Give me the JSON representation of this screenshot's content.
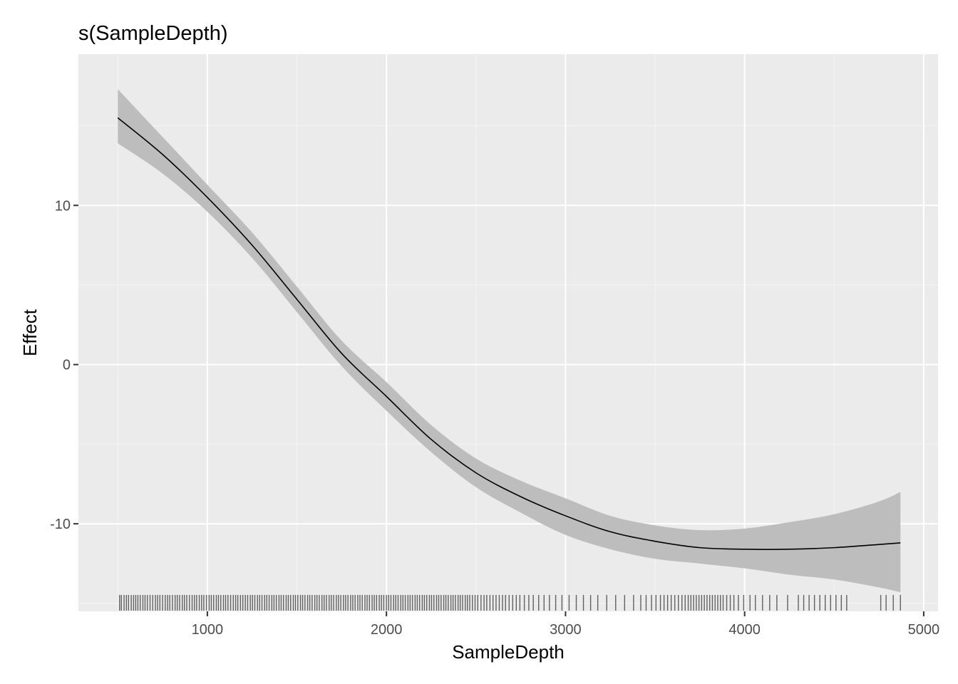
{
  "chart_data": {
    "type": "line",
    "title": "s(SampleDepth)",
    "xlabel": "SampleDepth",
    "ylabel": "Effect",
    "xlim": [
      280,
      5080
    ],
    "ylim": [
      -15.5,
      19.5
    ],
    "x_ticks": [
      1000,
      2000,
      3000,
      4000,
      5000
    ],
    "x_tick_labels": [
      "1000",
      "2000",
      "3000",
      "4000",
      "5000"
    ],
    "y_ticks": [
      -10,
      0,
      10
    ],
    "y_tick_labels": [
      "-10",
      "0",
      "10"
    ],
    "grid": true,
    "legend": "none",
    "colors": {
      "panel_background": "#ebebeb",
      "grid_major": "#ffffff",
      "grid_minor": "#f5f5f5",
      "line": "#000000",
      "ribbon": "#bdbdbd",
      "rug": "#333333"
    },
    "series": [
      {
        "x": [
          500,
          750,
          1000,
          1250,
          1500,
          1750,
          2000,
          2250,
          2500,
          2750,
          3000,
          3250,
          3500,
          3750,
          4000,
          4250,
          4500,
          4750,
          4870
        ],
        "y": [
          15.5,
          13.2,
          10.5,
          7.5,
          4.1,
          0.7,
          -2.0,
          -4.7,
          -6.8,
          -8.3,
          -9.5,
          -10.5,
          -11.1,
          -11.5,
          -11.6,
          -11.6,
          -11.5,
          -11.3,
          -11.2
        ],
        "lower": [
          13.9,
          12.0,
          9.6,
          6.7,
          3.3,
          -0.1,
          -2.9,
          -5.5,
          -7.7,
          -9.3,
          -10.7,
          -11.6,
          -12.2,
          -12.5,
          -12.8,
          -13.2,
          -13.5,
          -14.0,
          -14.3
        ],
        "upper": [
          17.3,
          14.3,
          11.3,
          8.3,
          4.9,
          1.5,
          -1.1,
          -3.8,
          -5.9,
          -7.3,
          -8.4,
          -9.5,
          -10.1,
          -10.4,
          -10.3,
          -9.9,
          -9.4,
          -8.6,
          -8.0
        ]
      }
    ],
    "rug": [
      510,
      520,
      535,
      548,
      560,
      575,
      588,
      600,
      612,
      625,
      640,
      652,
      665,
      680,
      695,
      710,
      722,
      735,
      750,
      765,
      778,
      790,
      805,
      820,
      832,
      845,
      860,
      872,
      885,
      900,
      915,
      928,
      940,
      955,
      968,
      980,
      995,
      1010,
      1022,
      1035,
      1050,
      1062,
      1075,
      1090,
      1102,
      1115,
      1130,
      1145,
      1158,
      1170,
      1185,
      1198,
      1212,
      1225,
      1240,
      1252,
      1265,
      1280,
      1292,
      1305,
      1320,
      1332,
      1345,
      1360,
      1372,
      1385,
      1400,
      1412,
      1425,
      1440,
      1452,
      1465,
      1480,
      1492,
      1505,
      1520,
      1532,
      1545,
      1560,
      1572,
      1585,
      1600,
      1612,
      1625,
      1640,
      1652,
      1665,
      1680,
      1692,
      1705,
      1720,
      1732,
      1745,
      1760,
      1772,
      1785,
      1800,
      1812,
      1825,
      1840,
      1852,
      1865,
      1880,
      1892,
      1905,
      1920,
      1932,
      1945,
      1960,
      1972,
      1985,
      2000,
      2012,
      2025,
      2040,
      2052,
      2065,
      2080,
      2092,
      2105,
      2120,
      2132,
      2145,
      2160,
      2172,
      2185,
      2200,
      2212,
      2225,
      2240,
      2252,
      2265,
      2280,
      2292,
      2305,
      2320,
      2332,
      2345,
      2360,
      2372,
      2385,
      2400,
      2412,
      2425,
      2440,
      2452,
      2465,
      2480,
      2495,
      2510,
      2528,
      2545,
      2560,
      2578,
      2595,
      2612,
      2630,
      2648,
      2665,
      2685,
      2705,
      2725,
      2745,
      2770,
      2795,
      2820,
      2850,
      2880,
      2910,
      2945,
      2980,
      3020,
      3060,
      3100,
      3140,
      3180,
      3230,
      3280,
      3330,
      3380,
      3420,
      3450,
      3480,
      3505,
      3530,
      3550,
      3570,
      3590,
      3610,
      3630,
      3650,
      3668,
      3685,
      3700,
      3715,
      3730,
      3745,
      3760,
      3775,
      3790,
      3805,
      3820,
      3835,
      3850,
      3865,
      3880,
      3900,
      3920,
      3940,
      3965,
      3995,
      4030,
      4060,
      4100,
      4140,
      4180,
      4240,
      4300,
      4330,
      4360,
      4390,
      4420,
      4450,
      4480,
      4510,
      4540,
      4570,
      4760,
      4790,
      4830,
      4870
    ]
  }
}
